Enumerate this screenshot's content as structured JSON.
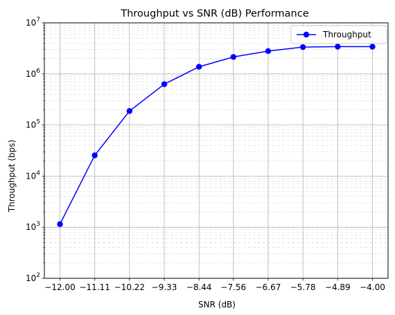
{
  "chart_data": {
    "type": "line",
    "title": "Throughput vs SNR (dB) Performance",
    "xlabel": "SNR (dB)",
    "ylabel": "Throughput (bps)",
    "yscale": "log",
    "ylim": [
      100,
      10000000
    ],
    "grid": true,
    "legend_position": "top-right",
    "x_tick_labels": [
      "−12.00",
      "−11.11",
      "−10.22",
      "−9.33",
      "−8.44",
      "−7.56",
      "−6.67",
      "−5.78",
      "−4.89",
      "−4.00"
    ],
    "y_ticks": [
      {
        "exp": 2,
        "value": 100
      },
      {
        "exp": 3,
        "value": 1000
      },
      {
        "exp": 4,
        "value": 10000
      },
      {
        "exp": 5,
        "value": 100000
      },
      {
        "exp": 6,
        "value": 1000000
      },
      {
        "exp": 7,
        "value": 10000000
      }
    ],
    "x": [
      -12.0,
      -11.11,
      -10.22,
      -9.33,
      -8.44,
      -7.56,
      -6.67,
      -5.78,
      -4.89,
      -4.0
    ],
    "series": [
      {
        "name": "Throughput",
        "color": "#0000ff",
        "values": [
          1150,
          25500,
          188000,
          630000,
          1380000,
          2150000,
          2800000,
          3350000,
          3420000,
          3420000
        ]
      }
    ]
  }
}
